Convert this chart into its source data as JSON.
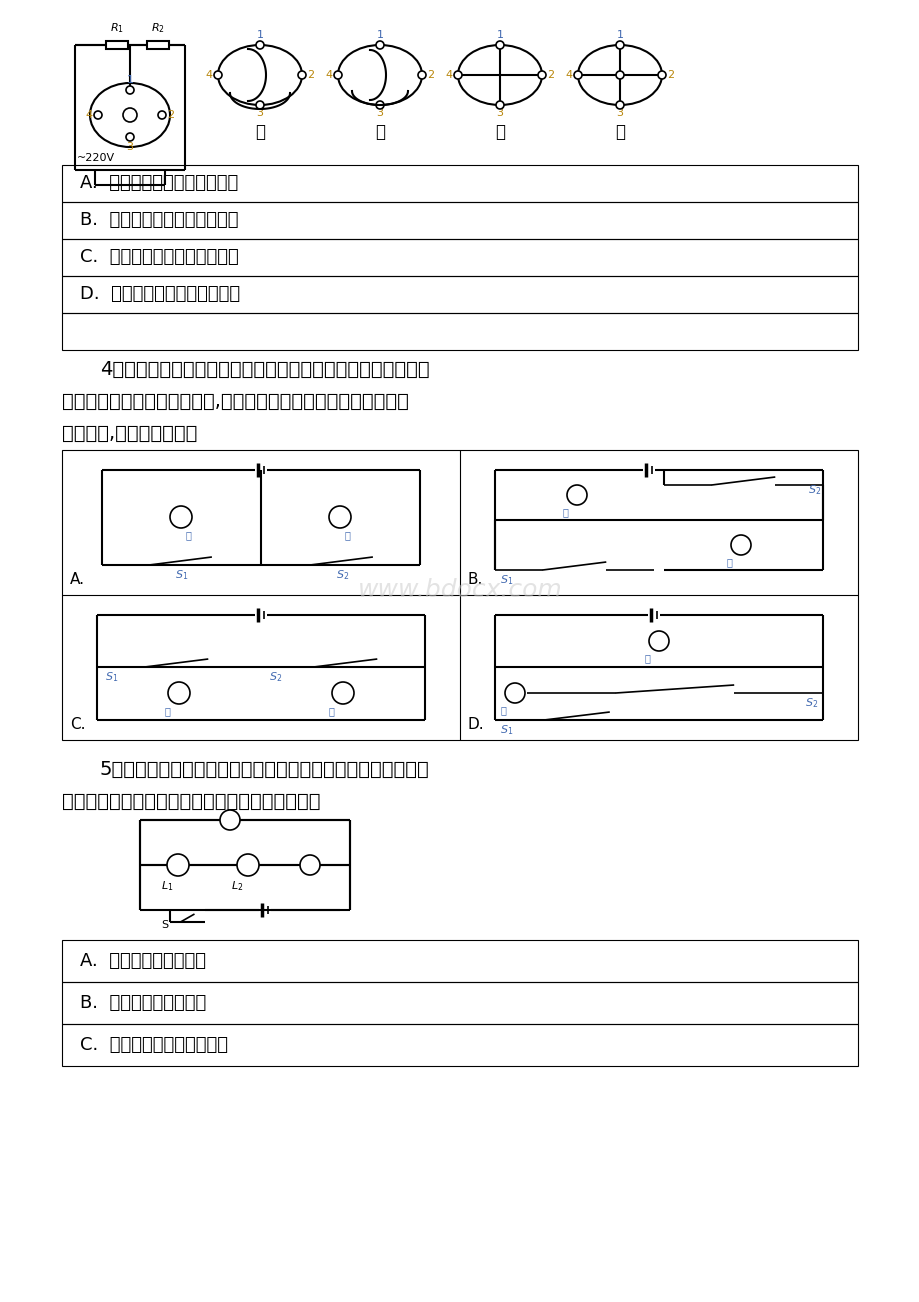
{
  "bg_color": "#ffffff",
  "page_width": 9.2,
  "page_height": 13.02,
  "blue_color": "#4169B0",
  "orange_color": "#B8860B",
  "q3_options": [
    "A.  甲的连接方式发热功率最小",
    "B.  乙的连接方式发热功率最小",
    "C.  丙的连接方式发热功率最大",
    "D.  丁的连接方式发热功率最小"
  ],
  "q3_options_extra_row": true,
  "q4_line1": "4．遵守交通规则，做文明出行者。小亮同学观察了十字路口人",
  "q4_line2": "行横道的红、绻交通信号灯后,画出了如图所示的控制人行红、绻灯",
  "q4_line3": "的电路图,你认为可行的是",
  "q5_line1": "5．如图所示，在电路中，若甲、乙两处分别装入电表，当开关",
  "q5_line2": "闭合后，两灯均能正常发光，则下列判断正确的是",
  "q5_options": [
    "A.  甲、乙、都是电流表",
    "B.  甲、乙、都是电压表",
    "C.  甲是电压表，乙是电流表"
  ],
  "watermark": "www.bdocx.com"
}
